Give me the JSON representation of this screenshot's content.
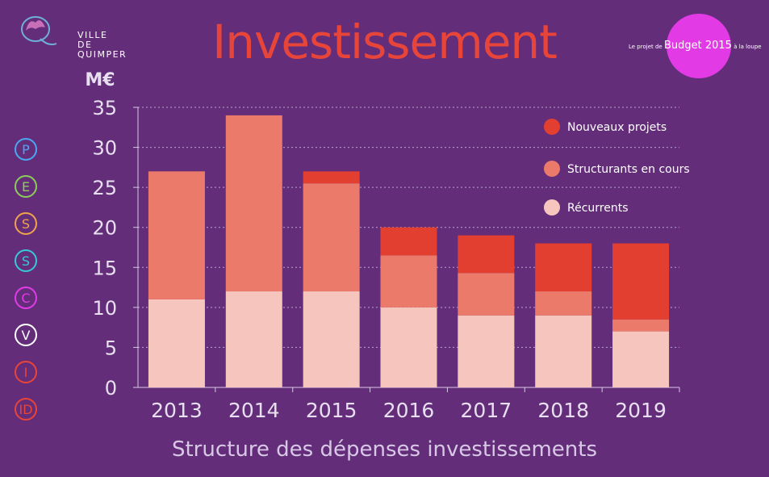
{
  "header": {
    "logo_line1": "VILLE",
    "logo_line2": "DE QUIMPER",
    "title": "Investissement",
    "badge_prefix": "Le projet de",
    "badge_main": "Budget 2015",
    "badge_suffix": "à la loupe"
  },
  "side_letters": [
    {
      "letter": "P",
      "color": "#4aa8f0"
    },
    {
      "letter": "E",
      "color": "#8ccc5a"
    },
    {
      "letter": "S",
      "color": "#f0a34a"
    },
    {
      "letter": "S",
      "color": "#38c8d8"
    },
    {
      "letter": "C",
      "color": "#e23be6"
    },
    {
      "letter": "V",
      "color": "#ffffff"
    },
    {
      "letter": "I",
      "color": "#e8453a"
    },
    {
      "letter": "ID",
      "color": "#e8453a"
    }
  ],
  "footer": {
    "subtitle": "Structure des dépenses investissements"
  },
  "chart_data": {
    "type": "bar",
    "stacked": true,
    "title": "Investissement",
    "subtitle": "Structure des dépenses investissements",
    "ylabel": "M€",
    "ylim": [
      0,
      35
    ],
    "yticks": [
      0,
      5,
      10,
      15,
      20,
      25,
      30,
      35
    ],
    "grid": true,
    "legend_position": "top-right",
    "categories": [
      "2013",
      "2014",
      "2015",
      "2016",
      "2017",
      "2018",
      "2019"
    ],
    "series": [
      {
        "name": "Récurrents",
        "color": "#f6c6be",
        "values": [
          11,
          12,
          12,
          10,
          9,
          9,
          7
        ]
      },
      {
        "name": "Structurants en cours",
        "color": "#ec7a6a",
        "values": [
          16,
          22,
          13.5,
          6.5,
          5.3,
          3,
          1.5
        ]
      },
      {
        "name": "Nouveaux projets",
        "color": "#e23f31",
        "values": [
          0,
          0,
          1.5,
          3.5,
          4.7,
          6,
          9.5
        ]
      }
    ],
    "legend_order": [
      "Nouveaux projets",
      "Structurants en cours",
      "Récurrents"
    ]
  }
}
